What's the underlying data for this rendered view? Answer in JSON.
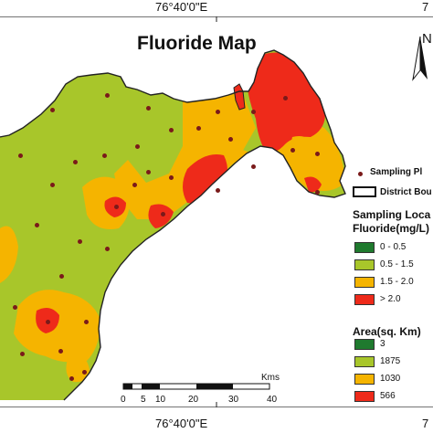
{
  "map": {
    "title": "Fluoride Map",
    "coord_top": "76°40'0\"E",
    "coord_bottom": "76°40'0\"E",
    "coord_top_right": "7",
    "coord_bottom_right": "7",
    "north_label": "N"
  },
  "legend": {
    "sampling_point_label": "Sampling Pl",
    "district_boundary_label": "District Bou",
    "fluoride_title_1": "Sampling Loca",
    "fluoride_title_2": "Fluoride(mg/L)",
    "fluoride_classes": [
      {
        "label": "0 - 0.5",
        "color": "#1f7a2e"
      },
      {
        "label": "0.5 - 1.5",
        "color": "#a8c62a"
      },
      {
        "label": "1.5 - 2.0",
        "color": "#f5b400"
      },
      {
        "label": "> 2.0",
        "color": "#ee2a1a"
      }
    ],
    "area_title": "Area(sq. Km)",
    "area_values": [
      {
        "label": "3",
        "color": "#1f7a2e"
      },
      {
        "label": "1875",
        "color": "#a8c62a"
      },
      {
        "label": "1030",
        "color": "#f5b400"
      },
      {
        "label": "566",
        "color": "#ee2a1a"
      }
    ]
  },
  "scale_bar": {
    "unit": "Kms",
    "ticks": [
      "0",
      "5",
      "10",
      "20",
      "30",
      "40"
    ]
  }
}
